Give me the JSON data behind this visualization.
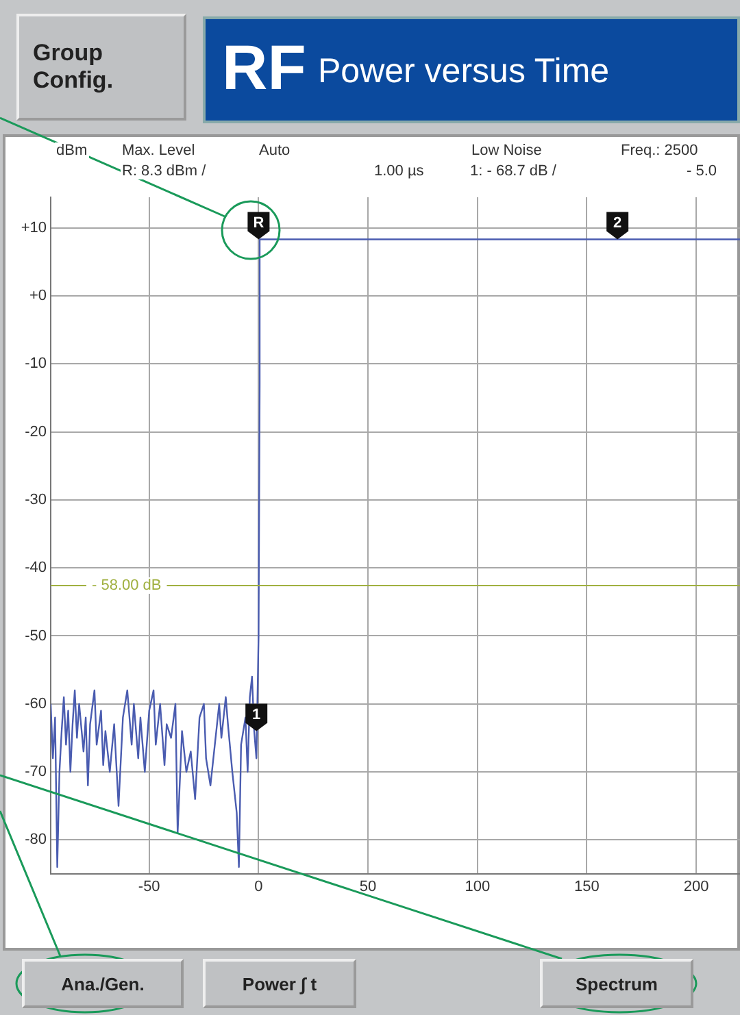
{
  "chart_data": {
    "type": "line",
    "title": "RF",
    "subtitle": "Power versus Time",
    "ylabel": "dBm",
    "annotations": [
      "Max. Level",
      "Auto",
      "Low Noise",
      "Freq.: 2500",
      "R:   8.3 dBm  /",
      "1.00 µs",
      "1:  - 68.7 dB   /",
      "- 5.0",
      "Group Config.",
      "Ana./Gen.",
      "Power ∫ t",
      "Spectrum",
      {
        "text": "R",
        "x": 0,
        "y": 8.3
      },
      {
        "text": "2",
        "x": 164,
        "y": 8.3
      },
      {
        "text": "1",
        "x": -1,
        "y": -64
      }
    ],
    "series": [
      {
        "color": "#4a5cb0",
        "x": [
          -95,
          -94,
          -93,
          -92,
          -91,
          -90,
          -89,
          -88,
          -87,
          -86,
          -85,
          -84,
          -83,
          -82,
          -80,
          -79,
          -78,
          -77,
          -75,
          -74,
          -72,
          -71,
          -70,
          -68,
          -66,
          -64,
          -62,
          -60,
          -58,
          -57,
          -55,
          -54,
          -52,
          -50,
          -48,
          -47,
          -45,
          -43,
          -42,
          -40,
          -38,
          -37,
          -35,
          -33,
          -31,
          -29,
          -27,
          -25,
          -24,
          -22,
          -20,
          -18,
          -17,
          -15,
          -14,
          -12,
          -10,
          -9,
          -8,
          -6,
          -5,
          -4,
          -3,
          -2,
          -1,
          0,
          0.5,
          0.5,
          220
        ],
        "values": [
          -60,
          -68,
          -62,
          -84,
          -70,
          -64,
          -59,
          -66,
          -61,
          -70,
          -63,
          -58,
          -65,
          -60,
          -67,
          -62,
          -72,
          -63,
          -58,
          -66,
          -61,
          -69,
          -64,
          -70,
          -63,
          -75,
          -62,
          -58,
          -66,
          -60,
          -68,
          -62,
          -70,
          -61,
          -58,
          -66,
          -60,
          -69,
          -63,
          -65,
          -60,
          -79,
          -64,
          -70,
          -67,
          -74,
          -62,
          -60,
          -68,
          -72,
          -66,
          -60,
          -65,
          -59,
          -63,
          -70,
          -76,
          -84,
          -66,
          -62,
          -70,
          -59,
          -56,
          -64,
          -68,
          -50,
          -13,
          8.3,
          8.3
        ]
      }
    ],
    "xlim": [
      -95,
      220
    ],
    "xticks": [
      -50,
      0,
      50,
      100,
      150,
      200
    ],
    "ylim": [
      -85,
      14.5
    ],
    "yticks": [
      {
        "value": 10,
        "label": "+10"
      },
      {
        "value": 0,
        "label": "+0"
      },
      -10,
      -20,
      -30,
      -40,
      -50,
      -60,
      -70,
      -80
    ],
    "ref_lines": [
      {
        "axis": "y",
        "value": -42.6,
        "label": "- 58.00 dB",
        "color": "#a0b040"
      }
    ],
    "grid": true,
    "marker": "none",
    "line_style": "solid"
  }
}
